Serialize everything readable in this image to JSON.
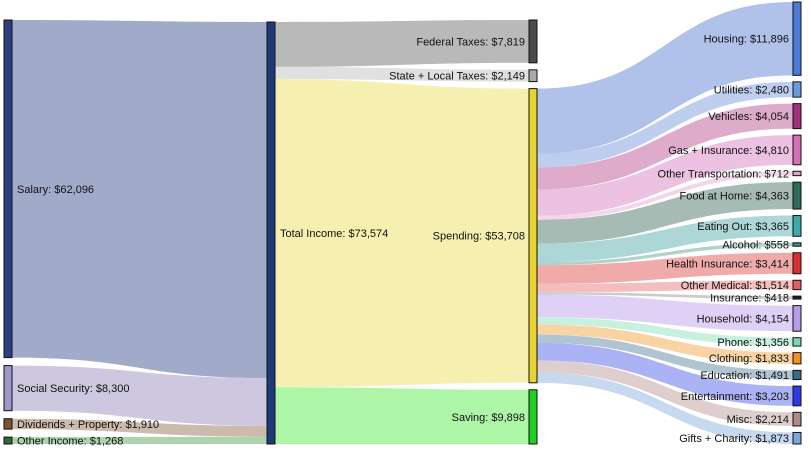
{
  "chart_data": {
    "type": "sankey",
    "title": "",
    "units": "USD",
    "nodes": [
      {
        "id": "salary",
        "label": "Salary: $62,096",
        "value": 62096,
        "color": "#2b3f82"
      },
      {
        "id": "social_security",
        "label": "Social Security: $8,300",
        "value": 8300,
        "color": "#9f97c8"
      },
      {
        "id": "dividends",
        "label": "Dividends + Property: $1,910",
        "value": 1910,
        "color": "#7a5330"
      },
      {
        "id": "other_income",
        "label": "Other Income: $1,268",
        "value": 1268,
        "color": "#2e6b2e"
      },
      {
        "id": "total_income",
        "label": "Total Income: $73,574",
        "value": 73574,
        "color": "#1f3a7a"
      },
      {
        "id": "federal_taxes",
        "label": "Federal Taxes: $7,819",
        "value": 7819,
        "color": "#4a4a4a"
      },
      {
        "id": "state_local_taxes",
        "label": "State + Local Taxes: $2,149",
        "value": 2149,
        "color": "#aaaaaa"
      },
      {
        "id": "spending",
        "label": "Spending: $53,708",
        "value": 53708,
        "color": "#e8d230"
      },
      {
        "id": "saving",
        "label": "Saving: $9,898",
        "value": 9898,
        "color": "#1fd01f"
      },
      {
        "id": "housing",
        "label": "Housing: $11,896",
        "value": 11896,
        "color": "#4a7ad8"
      },
      {
        "id": "utilities",
        "label": "Utilities: $2,480",
        "value": 2480,
        "color": "#6a9ae0"
      },
      {
        "id": "vehicles",
        "label": "Vehicles: $4,054",
        "value": 4054,
        "color": "#a33078"
      },
      {
        "id": "gas_insurance",
        "label": "Gas + Insurance: $4,810",
        "value": 4810,
        "color": "#d670b8"
      },
      {
        "id": "other_transportation",
        "label": "Other Transportation: $712",
        "value": 712,
        "color": "#e8a0c8"
      },
      {
        "id": "food_home",
        "label": "Food at Home: $4,363",
        "value": 4363,
        "color": "#2f6b5c"
      },
      {
        "id": "eating_out",
        "label": "Eating Out: $3,365",
        "value": 3365,
        "color": "#3fa8a8"
      },
      {
        "id": "alcohol",
        "label": "Alcohol: $558",
        "value": 558,
        "color": "#3f8f7a"
      },
      {
        "id": "health_insurance",
        "label": "Health Insurance: $3,414",
        "value": 3414,
        "color": "#d83030"
      },
      {
        "id": "other_medical",
        "label": "Other Medical: $1,514",
        "value": 1514,
        "color": "#e06060"
      },
      {
        "id": "insurance",
        "label": "Insurance: $418",
        "value": 418,
        "color": "#222222"
      },
      {
        "id": "household",
        "label": "Household: $4,154",
        "value": 4154,
        "color": "#b89ae8"
      },
      {
        "id": "phone",
        "label": "Phone: $1,356",
        "value": 1356,
        "color": "#7ad8b0"
      },
      {
        "id": "clothing",
        "label": "Clothing: $1,833",
        "value": 1833,
        "color": "#f09020"
      },
      {
        "id": "education",
        "label": "Education: $1,491",
        "value": 1491,
        "color": "#3a6a8a"
      },
      {
        "id": "entertainment",
        "label": "Entertainment: $3,203",
        "value": 3203,
        "color": "#2a3ae8"
      },
      {
        "id": "misc",
        "label": "Misc: $2,214",
        "value": 2214,
        "color": "#b08a8a"
      },
      {
        "id": "gifts_charity",
        "label": "Gifts + Charity: $1,873",
        "value": 1873,
        "color": "#7aa8d8"
      }
    ],
    "links": [
      {
        "source": "salary",
        "target": "total_income",
        "value": 62096,
        "color": "#9aa3c4"
      },
      {
        "source": "social_security",
        "target": "total_income",
        "value": 8300,
        "color": "#c9c3dc"
      },
      {
        "source": "dividends",
        "target": "total_income",
        "value": 1910,
        "color": "#c8b4a6"
      },
      {
        "source": "other_income",
        "target": "total_income",
        "value": 1268,
        "color": "#a8cfa8"
      },
      {
        "source": "total_income",
        "target": "federal_taxes",
        "value": 7819,
        "color": "#b3b3b3"
      },
      {
        "source": "total_income",
        "target": "state_local_taxes",
        "value": 2149,
        "color": "#dddddd"
      },
      {
        "source": "total_income",
        "target": "spending",
        "value": 53708,
        "color": "#f4efa8"
      },
      {
        "source": "total_income",
        "target": "saving",
        "value": 9898,
        "color": "#a6f5a0"
      },
      {
        "source": "spending",
        "target": "housing",
        "value": 11896,
        "color": "#a9bce8"
      },
      {
        "source": "spending",
        "target": "utilities",
        "value": 2480,
        "color": "#b7caee"
      },
      {
        "source": "spending",
        "target": "vehicles",
        "value": 4054,
        "color": "#dca4c6"
      },
      {
        "source": "spending",
        "target": "gas_insurance",
        "value": 4810,
        "color": "#ebbce0"
      },
      {
        "source": "spending",
        "target": "other_transportation",
        "value": 712,
        "color": "#f2d2e6"
      },
      {
        "source": "spending",
        "target": "food_home",
        "value": 4363,
        "color": "#9fb5af"
      },
      {
        "source": "spending",
        "target": "eating_out",
        "value": 3365,
        "color": "#a6d4d4"
      },
      {
        "source": "spending",
        "target": "alcohol",
        "value": 558,
        "color": "#a8cfc3"
      },
      {
        "source": "spending",
        "target": "health_insurance",
        "value": 3414,
        "color": "#efa3a3"
      },
      {
        "source": "spending",
        "target": "other_medical",
        "value": 1514,
        "color": "#f2b8b8"
      },
      {
        "source": "spending",
        "target": "insurance",
        "value": 418,
        "color": "#c8c8c8"
      },
      {
        "source": "spending",
        "target": "household",
        "value": 4154,
        "color": "#dccdf5"
      },
      {
        "source": "spending",
        "target": "phone",
        "value": 1356,
        "color": "#c2efdb"
      },
      {
        "source": "spending",
        "target": "clothing",
        "value": 1833,
        "color": "#f7cf9c"
      },
      {
        "source": "spending",
        "target": "education",
        "value": 1491,
        "color": "#a9bfcd"
      },
      {
        "source": "spending",
        "target": "entertainment",
        "value": 3203,
        "color": "#a5adf3"
      },
      {
        "source": "spending",
        "target": "misc",
        "value": 2214,
        "color": "#dccaca"
      },
      {
        "source": "spending",
        "target": "gifts_charity",
        "value": 1873,
        "color": "#c1d6ee"
      }
    ]
  }
}
